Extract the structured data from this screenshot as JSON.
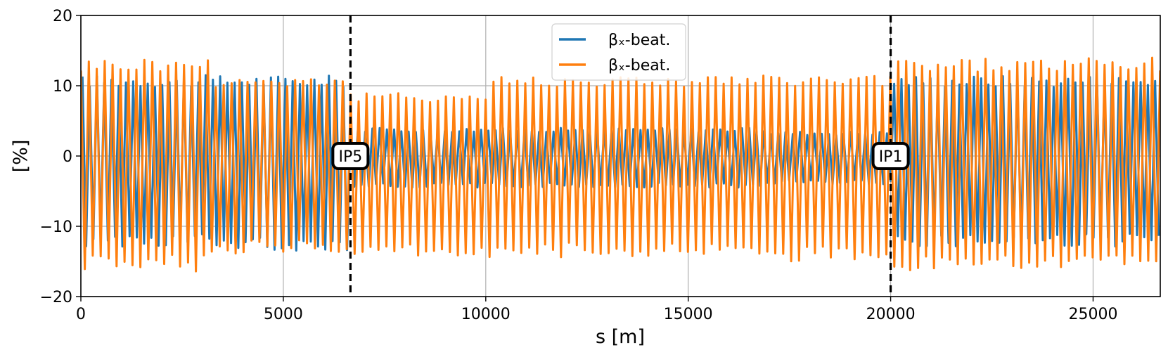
{
  "chart_data": {
    "type": "line",
    "title": "",
    "xlabel": "s [m]",
    "ylabel": "[%]",
    "xlim": [
      0,
      26659
    ],
    "ylim": [
      -20,
      20
    ],
    "xticks": [
      0,
      5000,
      10000,
      15000,
      20000,
      25000
    ],
    "xtick_labels": [
      "0",
      "5000",
      "10000",
      "15000",
      "20000",
      "25000"
    ],
    "yticks": [
      -20,
      -10,
      0,
      10,
      20
    ],
    "ytick_labels": [
      "−20",
      "−10",
      "0",
      "10",
      "20"
    ],
    "grid": true,
    "legend_position": "top-center",
    "series": [
      {
        "name": "βₓ-beat.",
        "color": "#1f77b4",
        "regions": [
          {
            "x_start": 0,
            "x_end": 3200,
            "amplitude_high": 11.5,
            "amplitude_low": -13.0
          },
          {
            "x_start": 3200,
            "x_end": 6600,
            "amplitude_high": 11.5,
            "amplitude_low": -13.5
          },
          {
            "x_start": 6600,
            "x_end": 16900,
            "amplitude_high": 4.0,
            "amplitude_low": -4.5
          },
          {
            "x_start": 16900,
            "x_end": 20000,
            "amplitude_high": 3.5,
            "amplitude_low": -4.0
          },
          {
            "x_start": 20000,
            "x_end": 26659,
            "amplitude_high": 11.5,
            "amplitude_low": -13.0
          }
        ]
      },
      {
        "name": "βₓ-beat.",
        "color": "#ff7f0e",
        "regions": [
          {
            "x_start": 0,
            "x_end": 3200,
            "amplitude_high": 14.0,
            "amplitude_low": -16.5
          },
          {
            "x_start": 3200,
            "x_end": 6600,
            "amplitude_high": 11.5,
            "amplitude_low": -14.0
          },
          {
            "x_start": 6600,
            "x_end": 10000,
            "amplitude_high": 9.0,
            "amplitude_low": -14.5
          },
          {
            "x_start": 10000,
            "x_end": 16800,
            "amplitude_high": 11.5,
            "amplitude_low": -14.5
          },
          {
            "x_start": 16800,
            "x_end": 20000,
            "amplitude_high": 11.5,
            "amplitude_low": -15.0
          },
          {
            "x_start": 20000,
            "x_end": 26659,
            "amplitude_high": 14.0,
            "amplitude_low": -16.5
          }
        ]
      }
    ],
    "annotations": [
      {
        "label": "IP5",
        "x": 6658
      },
      {
        "label": "IP1",
        "x": 20000
      }
    ]
  }
}
